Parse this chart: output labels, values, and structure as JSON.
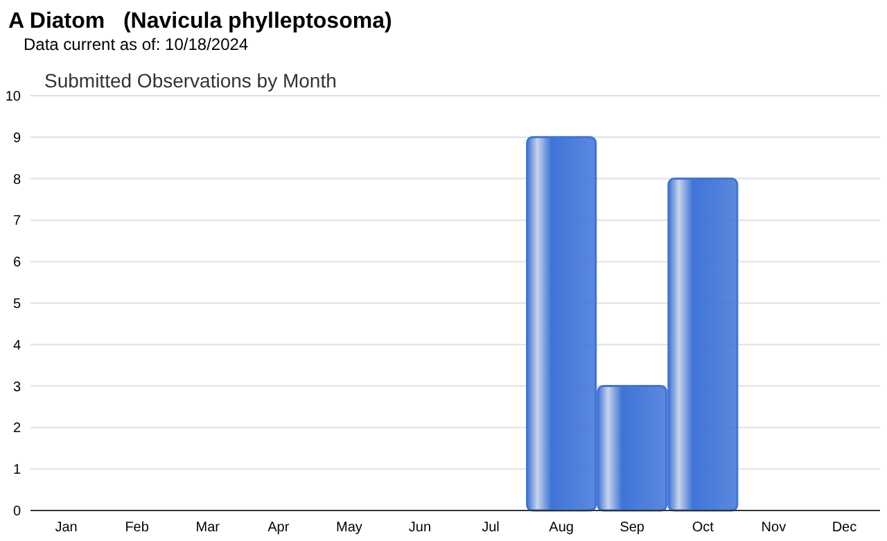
{
  "chart_data": {
    "type": "bar",
    "title": "A Diatom   (Navicula phylleptosoma)",
    "subtitle": "Data current as of: 10/18/2024",
    "annotations": [
      "Submitted Observations by Month"
    ],
    "categories": [
      "Jan",
      "Feb",
      "Mar",
      "Apr",
      "May",
      "Jun",
      "Jul",
      "Aug",
      "Sep",
      "Oct",
      "Nov",
      "Dec"
    ],
    "values": [
      0,
      0,
      0,
      0,
      0,
      0,
      0,
      9,
      3,
      8,
      0,
      0
    ],
    "color": "#3f74d8",
    "ylim": [
      0,
      10
    ],
    "yticks": [
      0,
      1,
      2,
      3,
      4,
      5,
      6,
      7,
      8,
      9,
      10
    ],
    "grid": "y"
  }
}
